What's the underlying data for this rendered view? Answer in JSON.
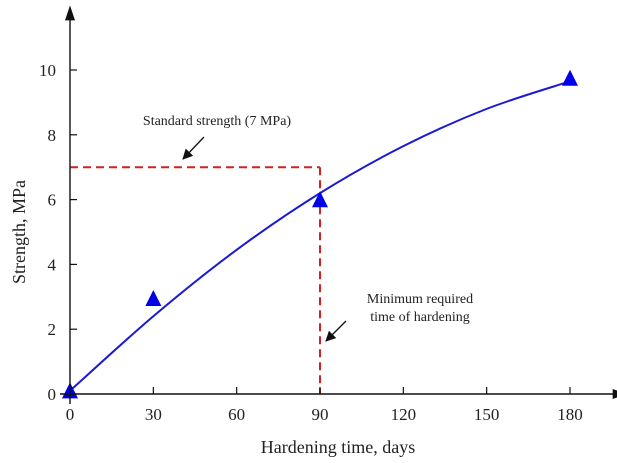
{
  "chart_data": {
    "type": "scatter",
    "title": "",
    "xlabel": "Hardening time, days",
    "ylabel": "Strength, MPa",
    "xlim": [
      0,
      195
    ],
    "ylim": [
      0,
      11.5
    ],
    "x_ticks": [
      0,
      30,
      60,
      90,
      120,
      150,
      180
    ],
    "y_ticks": [
      0,
      2,
      4,
      6,
      8,
      10
    ],
    "x_tick_labels": [
      "0",
      "30",
      "60",
      "90",
      "120",
      "150",
      "180"
    ],
    "y_tick_labels": [
      "0",
      "2",
      "4",
      "6",
      "8",
      "10"
    ],
    "grid": false,
    "series": [
      {
        "kind": "scatter",
        "marker": "triangle",
        "color": "#0000e6",
        "x": [
          0,
          30,
          90,
          180
        ],
        "y": [
          0.05,
          2.9,
          5.95,
          9.7
        ]
      },
      {
        "kind": "line",
        "color": "#1a1ad4",
        "fit": "quadratic",
        "x": [
          0,
          30,
          60,
          90,
          120,
          150,
          180
        ],
        "y": [
          0.1,
          2.4,
          4.45,
          6.2,
          7.65,
          8.8,
          9.65
        ]
      }
    ],
    "guide": {
      "color": "#d42020",
      "x": 90,
      "y": 7
    },
    "annotations": [
      {
        "text": "Standard strength (7 MPa)",
        "target": [
          40,
          7
        ]
      },
      {
        "text": [
          "Minimum required",
          "time of hardening"
        ],
        "target": [
          90,
          1.7
        ]
      }
    ]
  }
}
